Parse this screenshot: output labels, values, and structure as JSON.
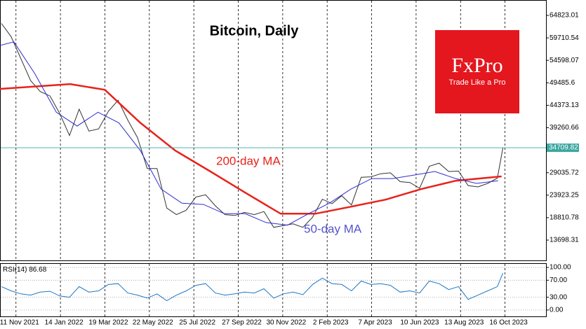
{
  "chart_data": [
    {
      "type": "line",
      "title": "Bitcoin, Daily",
      "xlim": [
        "2021-10-19",
        "2023-12-14"
      ],
      "ylim": [
        9080,
        68330
      ],
      "yticks": [
        64823.01,
        59710.54,
        54598.07,
        49485.6,
        44373.13,
        39260.66,
        29035.72,
        23923.25,
        18810.78,
        13698.31
      ],
      "series": [
        {
          "color": "#333333",
          "x": [
            "2021-10-21",
            "2021-11-04",
            "2021-11-18",
            "2021-12-02",
            "2021-12-16",
            "2021-12-30",
            "2022-01-13",
            "2022-01-27",
            "2022-02-10",
            "2022-02-24",
            "2022-03-10",
            "2022-03-24",
            "2022-04-07",
            "2022-04-21",
            "2022-05-05",
            "2022-05-19",
            "2022-06-02",
            "2022-06-16",
            "2022-06-30",
            "2022-07-14",
            "2022-07-28",
            "2022-08-11",
            "2022-08-25",
            "2022-09-08",
            "2022-09-22",
            "2022-10-06",
            "2022-10-20",
            "2022-11-03",
            "2022-11-17",
            "2022-12-01",
            "2022-12-15",
            "2022-12-29",
            "2023-01-12",
            "2023-01-26",
            "2023-02-09",
            "2023-02-23",
            "2023-03-09",
            "2023-03-23",
            "2023-04-06",
            "2023-04-20",
            "2023-05-04",
            "2023-05-18",
            "2023-06-01",
            "2023-06-15",
            "2023-06-29",
            "2023-07-13",
            "2023-07-27",
            "2023-08-10",
            "2023-08-24",
            "2023-09-07",
            "2023-09-21",
            "2023-10-05",
            "2023-10-13"
          ],
          "values": [
            63000,
            60000,
            55000,
            50000,
            47500,
            46500,
            42500,
            37500,
            43500,
            38500,
            39000,
            43000,
            45500,
            41000,
            37000,
            30000,
            30000,
            21000,
            19500,
            20500,
            23500,
            24000,
            21500,
            19500,
            19300,
            20000,
            19500,
            20200,
            16600,
            17000,
            17400,
            16600,
            18900,
            23000,
            22000,
            23800,
            21700,
            28000,
            28100,
            28800,
            29000,
            27000,
            26800,
            25500,
            30500,
            31200,
            29300,
            29400,
            26100,
            25800,
            26600,
            27800,
            34709.82
          ]
        },
        {
          "name": "200-day MA",
          "color": "#e8221b",
          "x": [
            "2021-10-19",
            "2022-01-28",
            "2022-03-19",
            "2022-05-09",
            "2022-06-28",
            "2022-08-18",
            "2022-10-07",
            "2022-11-27",
            "2023-01-16",
            "2023-03-08",
            "2023-04-27",
            "2023-06-17",
            "2023-08-06",
            "2023-10-11"
          ],
          "values": [
            48100,
            49200,
            47900,
            40400,
            34100,
            29300,
            24500,
            19700,
            19700,
            21300,
            22900,
            25300,
            27200,
            28200
          ]
        },
        {
          "name": "50-day MA",
          "color": "#2d2dd0",
          "x": [
            "2021-10-19",
            "2021-11-08",
            "2021-12-08",
            "2022-01-08",
            "2022-02-07",
            "2022-03-09",
            "2022-04-08",
            "2022-05-09",
            "2022-06-08",
            "2022-07-08",
            "2022-08-08",
            "2022-09-07",
            "2022-10-07",
            "2022-11-06",
            "2022-12-07",
            "2023-01-06",
            "2023-02-05",
            "2023-03-08",
            "2023-04-07",
            "2023-05-07",
            "2023-06-07",
            "2023-07-07",
            "2023-08-06",
            "2023-09-05",
            "2023-10-06"
          ],
          "values": [
            58000,
            58800,
            51600,
            42800,
            39650,
            42800,
            40400,
            34100,
            25300,
            22100,
            21800,
            19700,
            19700,
            17700,
            17100,
            19700,
            22100,
            25300,
            27700,
            27700,
            28500,
            29300,
            27700,
            26600,
            27200
          ]
        }
      ]
    },
    {
      "type": "line",
      "title": "RSI(14)",
      "xlim": [
        "2021-10-19",
        "2023-12-14"
      ],
      "ylim": [
        -15,
        110
      ],
      "yticks": [
        {
          "value": 100,
          "label": "100.00"
        },
        {
          "value": 70,
          "label": "70.00"
        },
        {
          "value": 30,
          "label": "30.00"
        },
        {
          "value": 0,
          "label": "0.00"
        }
      ],
      "xticks": [
        {
          "value": "2021-11-11",
          "label": "11 Nov 2021"
        },
        {
          "value": "2022-01-14",
          "label": "14 Jan 2022"
        },
        {
          "value": "2022-03-19",
          "label": "19 Mar 2022"
        },
        {
          "value": "2022-05-22",
          "label": "22 May 2022"
        },
        {
          "value": "2022-07-25",
          "label": "25 Jul 2022"
        },
        {
          "value": "2022-09-27",
          "label": "27 Sep 2022"
        },
        {
          "value": "2022-11-30",
          "label": "30 Nov 2022"
        },
        {
          "value": "2023-02-02",
          "label": "2 Feb 2023"
        },
        {
          "value": "2023-04-07",
          "label": "7 Apr 2023"
        },
        {
          "value": "2023-06-10",
          "label": "10 Jun 2023"
        },
        {
          "value": "2023-08-13",
          "label": "13 Aug 2023"
        },
        {
          "value": "2023-10-16",
          "label": "16 Oct 2023"
        }
      ],
      "series": [
        {
          "color": "#1f77c4",
          "x": [
            "2021-10-21",
            "2021-11-04",
            "2021-11-18",
            "2021-12-02",
            "2021-12-16",
            "2021-12-30",
            "2022-01-13",
            "2022-01-27",
            "2022-02-10",
            "2022-02-24",
            "2022-03-10",
            "2022-03-24",
            "2022-04-07",
            "2022-04-21",
            "2022-05-05",
            "2022-05-19",
            "2022-06-02",
            "2022-06-16",
            "2022-06-30",
            "2022-07-14",
            "2022-07-28",
            "2022-08-11",
            "2022-08-25",
            "2022-09-08",
            "2022-09-22",
            "2022-10-06",
            "2022-10-20",
            "2022-11-03",
            "2022-11-17",
            "2022-12-01",
            "2022-12-15",
            "2022-12-29",
            "2023-01-12",
            "2023-01-26",
            "2023-02-09",
            "2023-02-23",
            "2023-03-09",
            "2023-03-23",
            "2023-04-06",
            "2023-04-20",
            "2023-05-04",
            "2023-05-18",
            "2023-06-01",
            "2023-06-15",
            "2023-06-29",
            "2023-07-13",
            "2023-07-27",
            "2023-08-10",
            "2023-08-24",
            "2023-09-07",
            "2023-09-21",
            "2023-10-05",
            "2023-10-13"
          ],
          "values": [
            55,
            45,
            38,
            35,
            42,
            44,
            33,
            30,
            55,
            42,
            45,
            60,
            62,
            40,
            35,
            28,
            38,
            22,
            35,
            45,
            58,
            62,
            40,
            35,
            38,
            42,
            40,
            50,
            28,
            38,
            42,
            36,
            60,
            75,
            62,
            60,
            45,
            68,
            60,
            62,
            58,
            42,
            45,
            40,
            68,
            62,
            48,
            55,
            25,
            35,
            45,
            55,
            86.68
          ]
        }
      ]
    }
  ],
  "logo": {
    "name": "FxPro",
    "tagline": "Trade Like a Pro"
  }
}
